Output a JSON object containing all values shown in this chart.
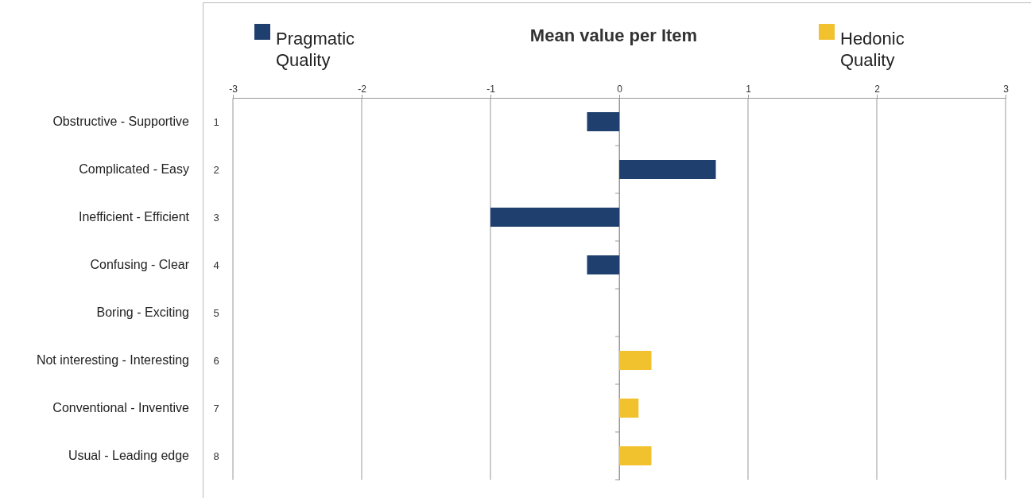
{
  "chart_data": {
    "type": "bar",
    "orientation": "horizontal",
    "title": "Mean value per Item",
    "categories": [
      "1",
      "2",
      "3",
      "4",
      "5",
      "6",
      "7",
      "8"
    ],
    "series": [
      {
        "name": "Pragmatic Quality",
        "color": "#1f3f6e",
        "values": [
          -0.25,
          0.75,
          -1,
          -0.25,
          null,
          null,
          null,
          null
        ]
      },
      {
        "name": "Hedonic Quality",
        "color": "#f2c12e",
        "values": [
          null,
          null,
          null,
          null,
          0,
          0.25,
          0.15,
          0.25
        ]
      }
    ],
    "annotations": [
      "Obstructive - Supportive",
      "Complicated - Easy",
      "Inefficient - Efficient",
      "Confusing - Clear",
      "Boring - Exciting",
      "Not interesting - Interesting",
      "Conventional - Inventive",
      "Usual - Leading edge"
    ],
    "xlim": [
      -3,
      3
    ],
    "xticks": [
      -3,
      -2,
      -1,
      0,
      1,
      2,
      3
    ],
    "grid": "x",
    "legend": "top"
  }
}
